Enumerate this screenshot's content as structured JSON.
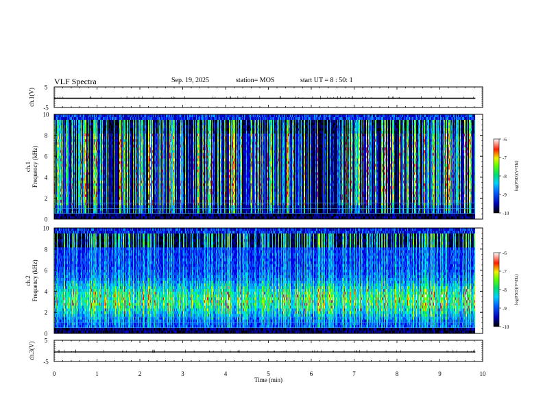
{
  "header": {
    "title": "VLF Spectra",
    "date": "Sep. 19, 2025",
    "station": "station= MOS",
    "start_ut": "start  UT =   8 : 50: 1"
  },
  "chart_data": [
    {
      "type": "line",
      "name": "ch.1 waveform",
      "ylabel": "ch.1(V)",
      "ylim": [
        -5,
        5
      ],
      "yticks": [
        "5",
        "-5"
      ],
      "level": -0.5,
      "xlim": [
        0,
        10
      ]
    },
    {
      "type": "heatmap",
      "name": "ch.1 spectrogram",
      "ylabel_top": "ch.1",
      "ylabel": "Frequency (kHz)",
      "ylim": [
        0,
        10
      ],
      "yticks": [
        "0",
        "2",
        "4",
        "6",
        "8",
        "10"
      ],
      "xlim": [
        0,
        9.83
      ],
      "colorbar": {
        "label": "log(PSD)(V²/Hz)",
        "range": [
          -10,
          -6
        ],
        "ticks": [
          "-6",
          "-7",
          "-8",
          "-9",
          "-10"
        ]
      }
    },
    {
      "type": "heatmap",
      "name": "ch.2 spectrogram",
      "ylabel_top": "ch.2",
      "ylabel": "Frequency (kHz)",
      "ylim": [
        0,
        10
      ],
      "yticks": [
        "0",
        "2",
        "4",
        "6",
        "8",
        "10"
      ],
      "xlim": [
        0,
        9.83
      ],
      "colorbar": {
        "label": "log(PSD)(V²/Hz)",
        "range": [
          -10,
          -6
        ],
        "ticks": [
          "-6",
          "-7",
          "-8",
          "-9",
          "-10"
        ]
      }
    },
    {
      "type": "line",
      "name": "ch.3 waveform",
      "ylabel": "ch.3(V)",
      "ylim": [
        -5,
        5
      ],
      "yticks": [
        "5",
        "-5"
      ],
      "level": -0.5,
      "xlim": [
        0,
        10
      ]
    }
  ],
  "x_axis": {
    "label": "Time (min)",
    "range": [
      0,
      10
    ],
    "ticks": [
      "0",
      "1",
      "2",
      "3",
      "4",
      "5",
      "6",
      "7",
      "8",
      "9",
      "10"
    ]
  }
}
